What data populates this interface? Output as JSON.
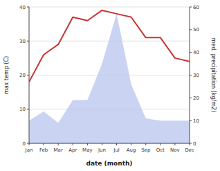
{
  "chart_data": {
    "type": "line",
    "xlabel": "date (month)",
    "ylabel": "max temp (C)",
    "y2label": "med. precipitation (kg/m2)",
    "categories": [
      "Jan",
      "Feb",
      "Mar",
      "Apr",
      "May",
      "Jun",
      "Jul",
      "Aug",
      "Sep",
      "Oct",
      "Nov",
      "Dec"
    ],
    "series": [
      {
        "type": "area",
        "axis": "y2",
        "color": "#b8c4ee",
        "values": [
          10,
          14,
          9,
          19,
          19,
          35,
          57,
          26,
          11,
          10,
          10,
          10
        ]
      },
      {
        "type": "line",
        "color": "#cc3333",
        "values": [
          18,
          26,
          29,
          37,
          36,
          39,
          38,
          37,
          31,
          31,
          25,
          24
        ]
      }
    ],
    "ylim": [
      0,
      40
    ],
    "yticks": [
      0,
      10,
      20,
      30,
      40
    ],
    "y2lim": [
      0,
      60
    ],
    "y2ticks": [
      0,
      10,
      20,
      30,
      40,
      50,
      60
    ],
    "grid": true
  }
}
